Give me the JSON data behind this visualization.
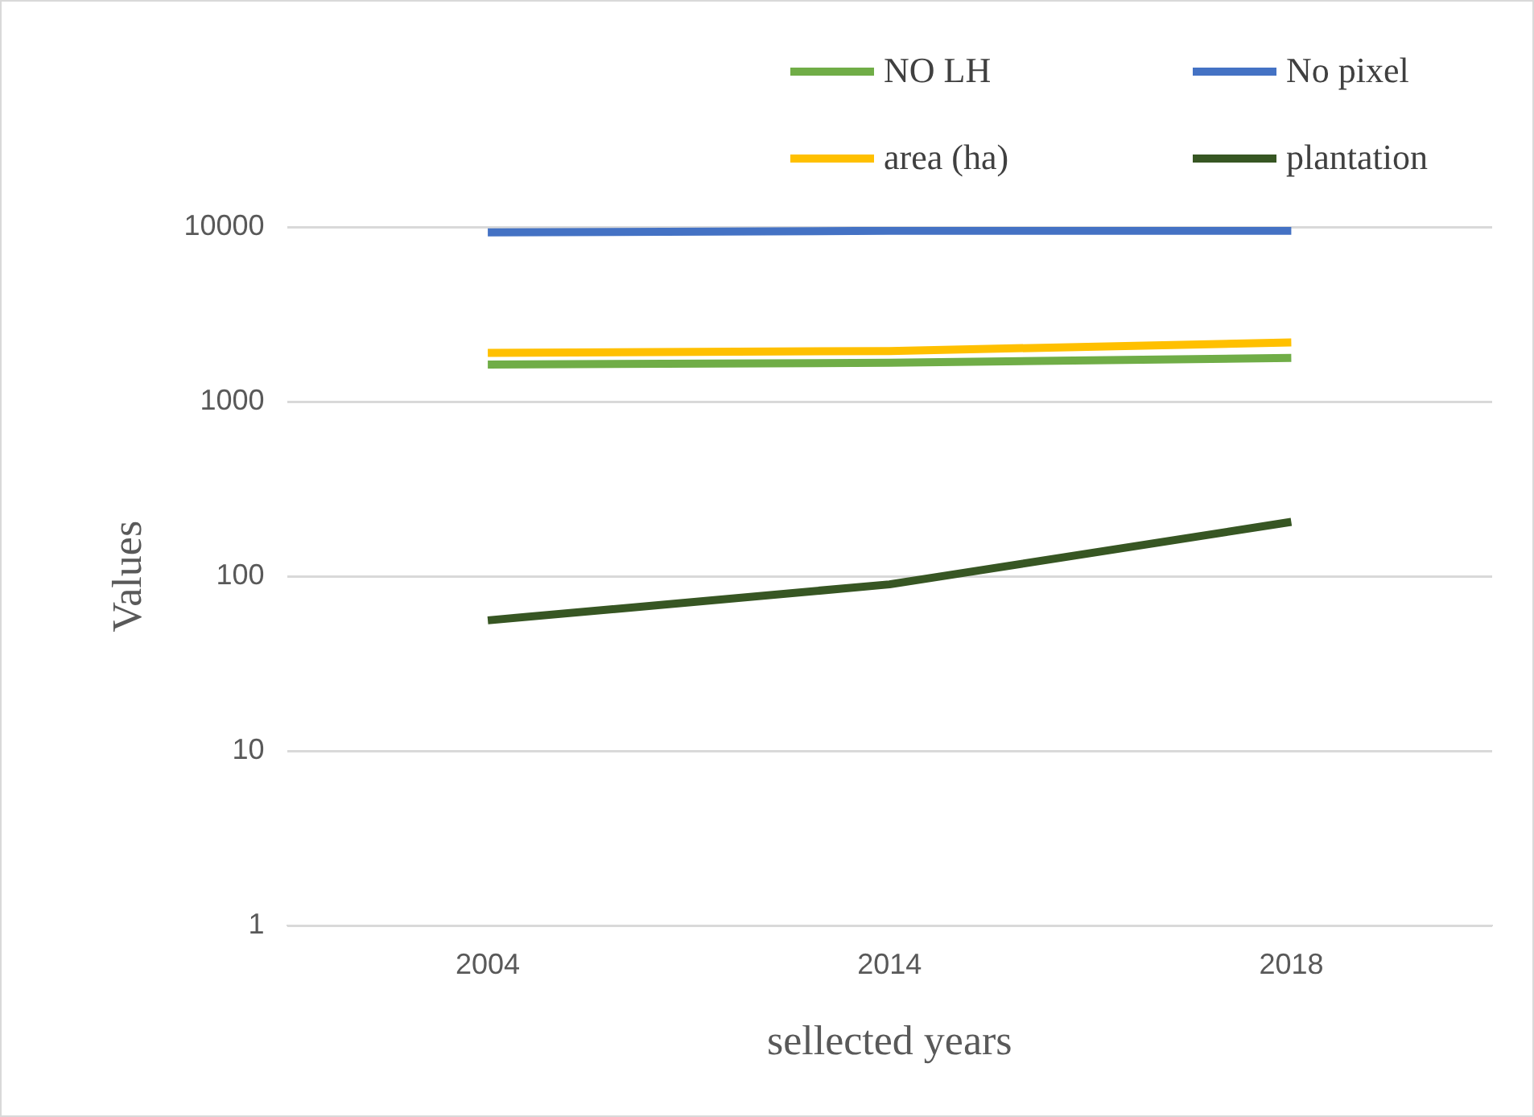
{
  "chart_data": {
    "type": "line",
    "xlabel": "sellected years",
    "ylabel": "Values",
    "categories": [
      "2004",
      "2014",
      "2018"
    ],
    "series": [
      {
        "name": "NO LH",
        "color": "#70ad47",
        "values": [
          1630,
          1670,
          1780
        ]
      },
      {
        "name": "No pixel",
        "color": "#4472c4",
        "values": [
          9300,
          9500,
          9500
        ]
      },
      {
        "name": "area (ha)",
        "color": "#ffc000",
        "values": [
          1900,
          1950,
          2180
        ]
      },
      {
        "name": "plantation",
        "color": "#375623",
        "values": [
          56,
          90,
          205
        ]
      }
    ],
    "log": "y",
    "ylim": [
      1,
      10000
    ],
    "yticks": [
      1,
      10,
      100,
      1000,
      10000
    ],
    "grid": "y",
    "legend": "top",
    "marker": "none",
    "line_style": "solid"
  }
}
